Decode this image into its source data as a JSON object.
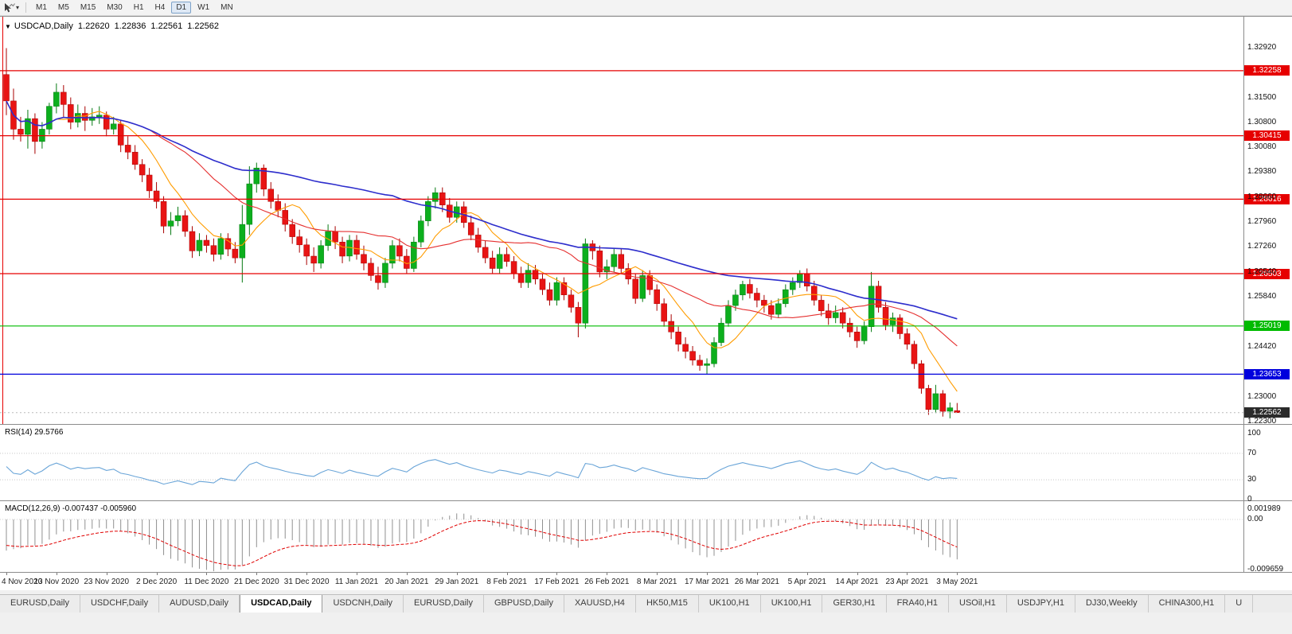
{
  "toolbar": {
    "timeframes": [
      "M1",
      "M5",
      "M15",
      "M30",
      "H1",
      "H4",
      "D1",
      "W1",
      "MN"
    ],
    "active_timeframe": "D1"
  },
  "chart": {
    "symbol_title": "USDCAD,Daily",
    "open": "1.22620",
    "high": "1.22836",
    "low": "1.22561",
    "close": "1.22562",
    "type": "candlestick",
    "price_axis": {
      "max": 1.3379,
      "min": 1.2224,
      "ticks": [
        "1.32920",
        "1.31500",
        "1.30800",
        "1.30080",
        "1.29380",
        "1.28660",
        "1.27960",
        "1.27260",
        "1.26540",
        "1.25840",
        "1.24420",
        "1.23000",
        "1.22300"
      ]
    },
    "levels": [
      {
        "value": 1.32258,
        "label": "1.32258",
        "color": "#e60000"
      },
      {
        "value": 1.30415,
        "label": "1.30415",
        "color": "#e60000"
      },
      {
        "value": 1.28616,
        "label": "1.28616",
        "color": "#e60000"
      },
      {
        "value": 1.26503,
        "label": "1.26503",
        "color": "#e60000"
      },
      {
        "value": 1.25019,
        "label": "1.25019",
        "color": "#00bb00"
      },
      {
        "value": 1.23653,
        "label": "1.23653",
        "color": "#0000dd"
      }
    ],
    "current_price": {
      "value": 1.22562,
      "label": "1.22562",
      "color": "#2b2b2b"
    },
    "date_labels": [
      "4 Nov 2020",
      "13 Nov 2020",
      "23 Nov 2020",
      "2 Dec 2020",
      "11 Dec 2020",
      "21 Dec 2020",
      "31 Dec 2020",
      "11 Jan 2021",
      "20 Jan 2021",
      "29 Jan 2021",
      "8 Feb 2021",
      "17 Feb 2021",
      "26 Feb 2021",
      "8 Mar 2021",
      "17 Mar 2021",
      "26 Mar 2021",
      "5 Apr 2021",
      "14 Apr 2021",
      "23 Apr 2021",
      "3 May 2021"
    ],
    "moving_averages": [
      {
        "period": 8,
        "color": "#ff9c00"
      },
      {
        "period": 21,
        "color": "#e53030"
      },
      {
        "period": 55,
        "color": "#2d2dcc"
      }
    ],
    "colors": {
      "bull": "#0caf1d",
      "bull_line": "#067a12",
      "bear": "#e81414",
      "bear_line": "#a80000",
      "level_red": "#e60000"
    },
    "candles": [
      [
        1.3215,
        1.329,
        1.31,
        1.314
      ],
      [
        1.314,
        1.3175,
        1.303,
        1.306
      ],
      [
        1.306,
        1.3095,
        1.3025,
        1.3045
      ],
      [
        1.3045,
        1.3115,
        1.3005,
        1.309
      ],
      [
        1.309,
        1.3105,
        1.299,
        1.3025
      ],
      [
        1.3025,
        1.308,
        1.3005,
        1.306
      ],
      [
        1.306,
        1.3135,
        1.3045,
        1.3125
      ],
      [
        1.3125,
        1.319,
        1.3105,
        1.3165
      ],
      [
        1.3165,
        1.3185,
        1.3095,
        1.313
      ],
      [
        1.313,
        1.315,
        1.306,
        1.308
      ],
      [
        1.308,
        1.313,
        1.3065,
        1.3105
      ],
      [
        1.3105,
        1.3125,
        1.3055,
        1.3085
      ],
      [
        1.3085,
        1.312,
        1.307,
        1.3095
      ],
      [
        1.3095,
        1.3125,
        1.3075,
        1.31
      ],
      [
        1.31,
        1.311,
        1.304,
        1.306
      ],
      [
        1.306,
        1.3095,
        1.3045,
        1.3075
      ],
      [
        1.3075,
        1.3085,
        1.2995,
        1.3015
      ],
      [
        1.3015,
        1.304,
        1.2975,
        1.2995
      ],
      [
        1.2995,
        1.3015,
        1.2945,
        1.296
      ],
      [
        1.296,
        1.2975,
        1.291,
        1.293
      ],
      [
        1.293,
        1.295,
        1.2865,
        1.2885
      ],
      [
        1.2885,
        1.291,
        1.2835,
        1.2855
      ],
      [
        1.2855,
        1.287,
        1.2765,
        1.2785
      ],
      [
        1.2785,
        1.2825,
        1.276,
        1.28
      ],
      [
        1.28,
        1.284,
        1.2785,
        1.2815
      ],
      [
        1.2815,
        1.283,
        1.2755,
        1.277
      ],
      [
        1.277,
        1.2785,
        1.2695,
        1.2715
      ],
      [
        1.2715,
        1.2765,
        1.27,
        1.2745
      ],
      [
        1.2745,
        1.276,
        1.271,
        1.273
      ],
      [
        1.273,
        1.275,
        1.2685,
        1.2705
      ],
      [
        1.2705,
        1.2765,
        1.269,
        1.275
      ],
      [
        1.275,
        1.2765,
        1.27,
        1.272
      ],
      [
        1.272,
        1.274,
        1.268,
        1.2695
      ],
      [
        1.2695,
        1.2845,
        1.2625,
        1.279
      ],
      [
        1.279,
        1.2955,
        1.276,
        1.2905
      ],
      [
        1.2905,
        1.2965,
        1.288,
        1.295
      ],
      [
        1.295,
        1.296,
        1.287,
        1.289
      ],
      [
        1.289,
        1.291,
        1.2835,
        1.2855
      ],
      [
        1.2855,
        1.2875,
        1.281,
        1.283
      ],
      [
        1.283,
        1.285,
        1.277,
        1.279
      ],
      [
        1.279,
        1.2805,
        1.2735,
        1.2755
      ],
      [
        1.2755,
        1.2775,
        1.271,
        1.2732
      ],
      [
        1.2732,
        1.275,
        1.2675,
        1.27
      ],
      [
        1.27,
        1.2725,
        1.2655,
        1.268
      ],
      [
        1.268,
        1.2745,
        1.2665,
        1.273
      ],
      [
        1.273,
        1.279,
        1.2715,
        1.277
      ],
      [
        1.277,
        1.2785,
        1.272,
        1.274
      ],
      [
        1.274,
        1.2755,
        1.268,
        1.27
      ],
      [
        1.27,
        1.276,
        1.2685,
        1.2745
      ],
      [
        1.2745,
        1.276,
        1.269,
        1.2705
      ],
      [
        1.2705,
        1.273,
        1.266,
        1.268
      ],
      [
        1.268,
        1.2695,
        1.263,
        1.2645
      ],
      [
        1.2645,
        1.267,
        1.2605,
        1.2625
      ],
      [
        1.2625,
        1.2695,
        1.261,
        1.268
      ],
      [
        1.268,
        1.2745,
        1.2665,
        1.273
      ],
      [
        1.273,
        1.275,
        1.2685,
        1.27
      ],
      [
        1.27,
        1.272,
        1.265,
        1.2665
      ],
      [
        1.2665,
        1.2755,
        1.2655,
        1.274
      ],
      [
        1.274,
        1.2815,
        1.2725,
        1.28
      ],
      [
        1.28,
        1.287,
        1.2785,
        1.2855
      ],
      [
        1.2855,
        1.2895,
        1.2835,
        1.288
      ],
      [
        1.288,
        1.2895,
        1.2825,
        1.2845
      ],
      [
        1.2845,
        1.2865,
        1.2795,
        1.281
      ],
      [
        1.281,
        1.2855,
        1.2795,
        1.284
      ],
      [
        1.284,
        1.2855,
        1.278,
        1.2795
      ],
      [
        1.2795,
        1.2815,
        1.2745,
        1.276
      ],
      [
        1.276,
        1.278,
        1.271,
        1.2725
      ],
      [
        1.2725,
        1.2745,
        1.268,
        1.2695
      ],
      [
        1.2695,
        1.2715,
        1.265,
        1.2665
      ],
      [
        1.2665,
        1.2725,
        1.265,
        1.2705
      ],
      [
        1.2705,
        1.2725,
        1.267,
        1.2685
      ],
      [
        1.2685,
        1.27,
        1.2635,
        1.265
      ],
      [
        1.265,
        1.267,
        1.261,
        1.2625
      ],
      [
        1.2625,
        1.268,
        1.261,
        1.266
      ],
      [
        1.266,
        1.2675,
        1.262,
        1.2635
      ],
      [
        1.2635,
        1.265,
        1.259,
        1.2605
      ],
      [
        1.2605,
        1.2625,
        1.256,
        1.2575
      ],
      [
        1.2575,
        1.264,
        1.256,
        1.2625
      ],
      [
        1.2625,
        1.264,
        1.2575,
        1.259
      ],
      [
        1.259,
        1.2605,
        1.254,
        1.2555
      ],
      [
        1.2555,
        1.257,
        1.247,
        1.251
      ],
      [
        1.251,
        1.275,
        1.2495,
        1.2735
      ],
      [
        1.2735,
        1.2745,
        1.269,
        1.2715
      ],
      [
        1.2715,
        1.273,
        1.264,
        1.2655
      ],
      [
        1.2655,
        1.269,
        1.2635,
        1.267
      ],
      [
        1.267,
        1.272,
        1.2655,
        1.2705
      ],
      [
        1.2705,
        1.272,
        1.265,
        1.2665
      ],
      [
        1.2665,
        1.268,
        1.262,
        1.2635
      ],
      [
        1.2635,
        1.265,
        1.2565,
        1.258
      ],
      [
        1.258,
        1.266,
        1.257,
        1.2645
      ],
      [
        1.2645,
        1.266,
        1.259,
        1.2605
      ],
      [
        1.2605,
        1.262,
        1.2545,
        1.2565
      ],
      [
        1.2565,
        1.258,
        1.25,
        1.2515
      ],
      [
        1.2515,
        1.2535,
        1.2465,
        1.2485
      ],
      [
        1.2485,
        1.25,
        1.243,
        1.245
      ],
      [
        1.245,
        1.247,
        1.241,
        1.243
      ],
      [
        1.243,
        1.2445,
        1.239,
        1.2405
      ],
      [
        1.2405,
        1.242,
        1.2375,
        1.239
      ],
      [
        1.239,
        1.241,
        1.2365,
        1.2395
      ],
      [
        1.2395,
        1.247,
        1.2385,
        1.2455
      ],
      [
        1.2455,
        1.2525,
        1.2445,
        1.251
      ],
      [
        1.251,
        1.2575,
        1.25,
        1.256
      ],
      [
        1.256,
        1.2605,
        1.2545,
        1.259
      ],
      [
        1.259,
        1.263,
        1.2575,
        1.262
      ],
      [
        1.262,
        1.2635,
        1.258,
        1.2595
      ],
      [
        1.2595,
        1.261,
        1.2555,
        1.2575
      ],
      [
        1.2575,
        1.259,
        1.254,
        1.256
      ],
      [
        1.256,
        1.2575,
        1.252,
        1.2535
      ],
      [
        1.2535,
        1.258,
        1.2525,
        1.2565
      ],
      [
        1.2565,
        1.262,
        1.2555,
        1.2605
      ],
      [
        1.2605,
        1.264,
        1.259,
        1.2625
      ],
      [
        1.2625,
        1.266,
        1.261,
        1.265
      ],
      [
        1.265,
        1.2665,
        1.26,
        1.2615
      ],
      [
        1.2615,
        1.263,
        1.256,
        1.2575
      ],
      [
        1.2575,
        1.259,
        1.253,
        1.2545
      ],
      [
        1.2545,
        1.2565,
        1.2505,
        1.2525
      ],
      [
        1.2525,
        1.256,
        1.251,
        1.254
      ],
      [
        1.254,
        1.2555,
        1.2495,
        1.251
      ],
      [
        1.251,
        1.2525,
        1.247,
        1.2485
      ],
      [
        1.2485,
        1.25,
        1.244,
        1.246
      ],
      [
        1.246,
        1.2515,
        1.245,
        1.25
      ],
      [
        1.25,
        1.2655,
        1.2485,
        1.2615
      ],
      [
        1.2615,
        1.263,
        1.254,
        1.2555
      ],
      [
        1.2555,
        1.257,
        1.249,
        1.2505
      ],
      [
        1.2505,
        1.254,
        1.2485,
        1.2525
      ],
      [
        1.2525,
        1.2535,
        1.2465,
        1.248
      ],
      [
        1.248,
        1.2495,
        1.2435,
        1.245
      ],
      [
        1.245,
        1.246,
        1.238,
        1.2395
      ],
      [
        1.2395,
        1.2405,
        1.231,
        1.2325
      ],
      [
        1.2325,
        1.2335,
        1.225,
        1.2265
      ],
      [
        1.2265,
        1.2335,
        1.2255,
        1.231
      ],
      [
        1.231,
        1.232,
        1.2245,
        1.226
      ],
      [
        1.226,
        1.2285,
        1.224,
        1.227
      ],
      [
        1.2262,
        1.22836,
        1.22561,
        1.22562
      ]
    ]
  },
  "indicators": {
    "rsi": {
      "value_label": "RSI(14) 29.5766",
      "period": 14,
      "value": 29.5766,
      "color": "#6aa5d8",
      "levels": [
        70,
        30
      ],
      "axis_ticks": [
        {
          "v": 100,
          "label": "100"
        },
        {
          "v": 70,
          "label": "70"
        },
        {
          "v": 30,
          "label": "30"
        },
        {
          "v": 0,
          "label": "0"
        }
      ]
    },
    "macd": {
      "value_label": "MACD(12,26,9) -0.007437 -0.005960",
      "fast": 12,
      "slow": 26,
      "signal": 9,
      "macd_value": -0.007437,
      "signal_value": -0.00596,
      "hist_color": "#909090",
      "signal_color": "#e00000",
      "axis_max": 0.001989,
      "axis_min": -0.009659,
      "axis_ticks": [
        {
          "v": 0.001989,
          "label": "0.001989"
        },
        {
          "v": 0,
          "label": "0.00"
        },
        {
          "v": -0.009659,
          "label": "-0.009659"
        }
      ]
    }
  },
  "tabs": {
    "active_index": 3,
    "items": [
      "EURUSD,Daily",
      "USDCHF,Daily",
      "AUDUSD,Daily",
      "USDCAD,Daily",
      "USDCNH,Daily",
      "EURUSD,Daily",
      "GBPUSD,Daily",
      "XAUUSD,H4",
      "HK50,M15",
      "UK100,H1",
      "UK100,H1",
      "GER30,H1",
      "FRA40,H1",
      "USOil,H1",
      "USDJPY,H1",
      "DJ30,Weekly",
      "CHINA300,H1",
      "U"
    ]
  }
}
